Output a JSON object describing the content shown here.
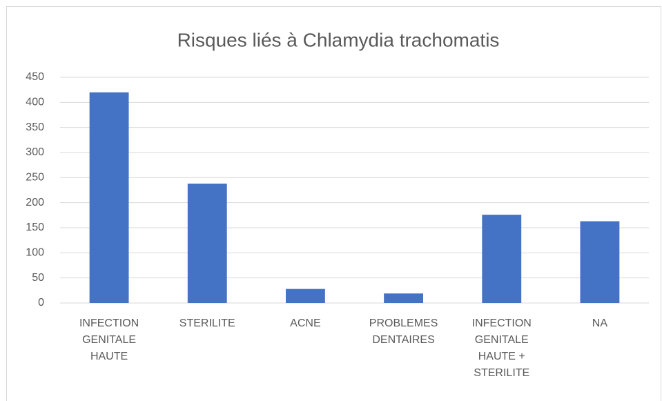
{
  "chart_data": {
    "type": "bar",
    "title": "Risques liés à Chlamydia trachomatis",
    "categories": [
      "INFECTION GENITALE HAUTE",
      "STERILITE",
      "ACNE",
      "PROBLEMES DENTAIRES",
      "INFECTION GENITALE HAUTE + STERILITE",
      "NA"
    ],
    "values": [
      420,
      238,
      28,
      19,
      176,
      163
    ],
    "color": "#4472c4",
    "ylim": [
      0,
      450
    ],
    "yticks": [
      0,
      50,
      100,
      150,
      200,
      250,
      300,
      350,
      400,
      450
    ],
    "grid": true
  }
}
